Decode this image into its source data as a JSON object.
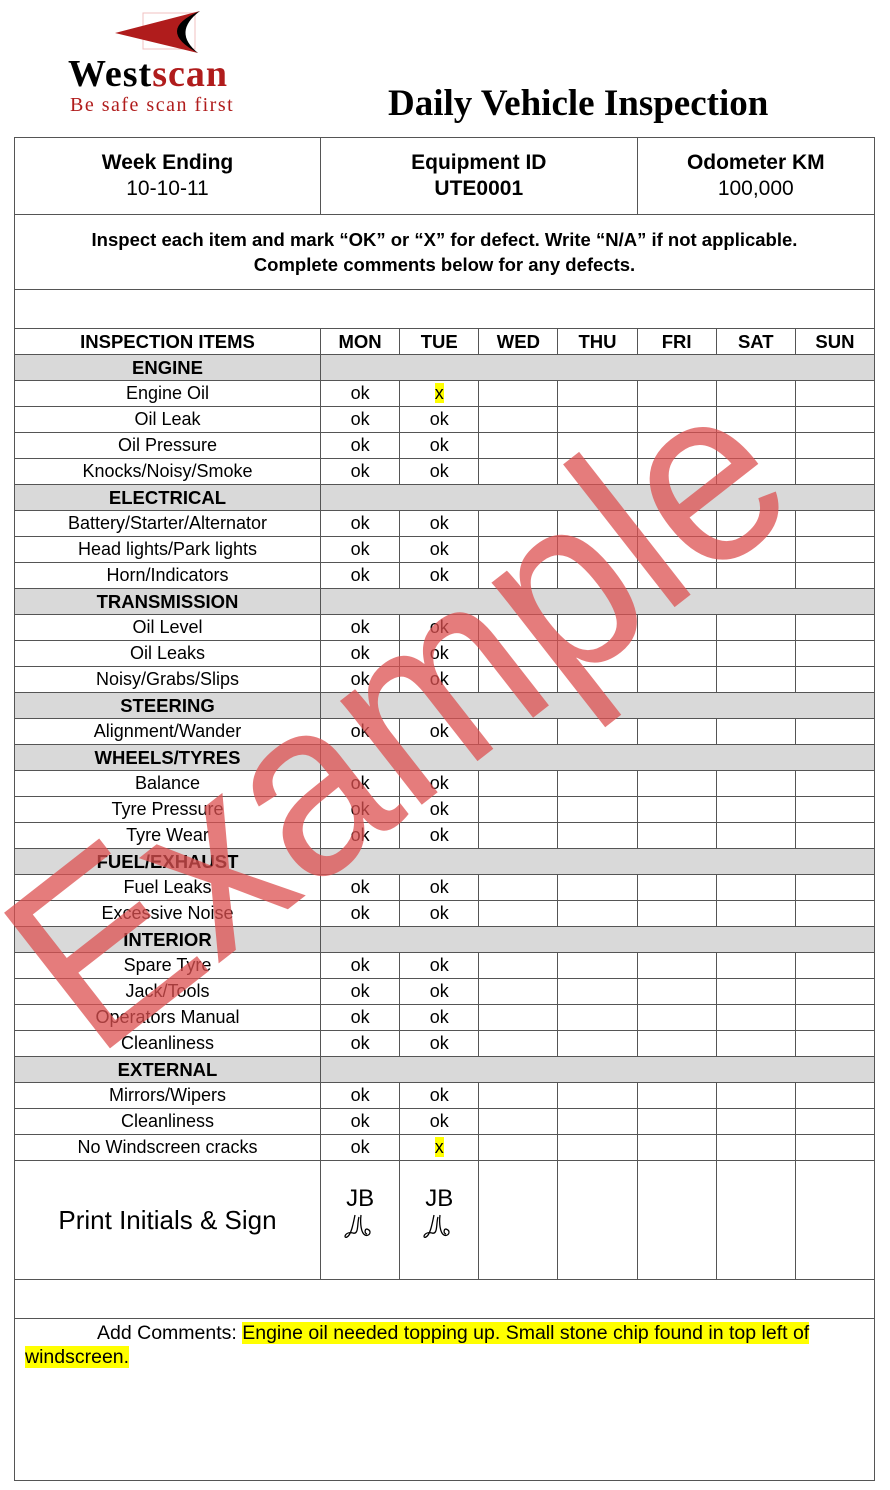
{
  "logo": {
    "brand_part1": "West",
    "brand_part2": "scan",
    "tagline": "Be safe scan first"
  },
  "title": "Daily Vehicle Inspection",
  "header": [
    {
      "label": "Week Ending",
      "value": "10-10-11"
    },
    {
      "label": "Equipment ID",
      "value": "UTE0001"
    },
    {
      "label": "Odometer KM",
      "value": "100,000"
    }
  ],
  "instructions": [
    "Inspect each item and mark “OK” or “X” for defect. Write “N/A” if not applicable.",
    "Complete comments below for any defects."
  ],
  "columns": [
    "INSPECTION ITEMS",
    "MON",
    "TUE",
    "WED",
    "THU",
    "FRI",
    "SAT",
    "SUN"
  ],
  "sections": [
    {
      "name": "ENGINE",
      "items": [
        [
          "Engine Oil",
          "ok",
          "x"
        ],
        [
          "Oil Leak",
          "ok",
          "ok"
        ],
        [
          "Oil Pressure",
          "ok",
          "ok"
        ],
        [
          "Knocks/Noisy/Smoke",
          "ok",
          "ok"
        ]
      ]
    },
    {
      "name": "ELECTRICAL",
      "items": [
        [
          "Battery/Starter/Alternator",
          "ok",
          "ok"
        ],
        [
          "Head lights/Park lights",
          "ok",
          "ok"
        ],
        [
          "Horn/Indicators",
          "ok",
          "ok"
        ]
      ]
    },
    {
      "name": "TRANSMISSION",
      "items": [
        [
          "Oil Level",
          "ok",
          "ok"
        ],
        [
          "Oil Leaks",
          "ok",
          "ok"
        ],
        [
          "Noisy/Grabs/Slips",
          "ok",
          "ok"
        ]
      ]
    },
    {
      "name": "STEERING",
      "items": [
        [
          "Alignment/Wander",
          "ok",
          "ok"
        ]
      ]
    },
    {
      "name": "WHEELS/TYRES",
      "items": [
        [
          "Balance",
          "ok",
          "ok"
        ],
        [
          "Tyre Pressure",
          "ok",
          "ok"
        ],
        [
          "Tyre Wear",
          "ok",
          "ok"
        ]
      ]
    },
    {
      "name": "FUEL/EXHAUST",
      "items": [
        [
          "Fuel Leaks",
          "ok",
          "ok"
        ],
        [
          "Excessive Noise",
          "ok",
          "ok"
        ]
      ]
    },
    {
      "name": "INTERIOR",
      "items": [
        [
          "Spare Tyre",
          "ok",
          "ok"
        ],
        [
          "Jack/Tools",
          "ok",
          "ok"
        ],
        [
          "Operators Manual",
          "ok",
          "ok"
        ],
        [
          "Cleanliness",
          "ok",
          "ok"
        ]
      ]
    },
    {
      "name": "EXTERNAL",
      "items": [
        [
          "Mirrors/Wipers",
          "ok",
          "ok"
        ],
        [
          "Cleanliness",
          "ok",
          "ok"
        ],
        [
          "No Windscreen cracks",
          "ok",
          "x"
        ]
      ]
    }
  ],
  "sign": {
    "label": "Print Initials & Sign",
    "mon": "JB",
    "tue": "JB"
  },
  "comments": {
    "label": "Add Comments:",
    "text": "Engine oil needed topping up. Small stone chip found in top left of windscreen."
  },
  "watermark": "Example",
  "colors": {
    "highlight": "#ffff00",
    "brand_red": "#b01c1c",
    "watermark": "#dc5050",
    "section_bg": "#d9d9d9"
  }
}
